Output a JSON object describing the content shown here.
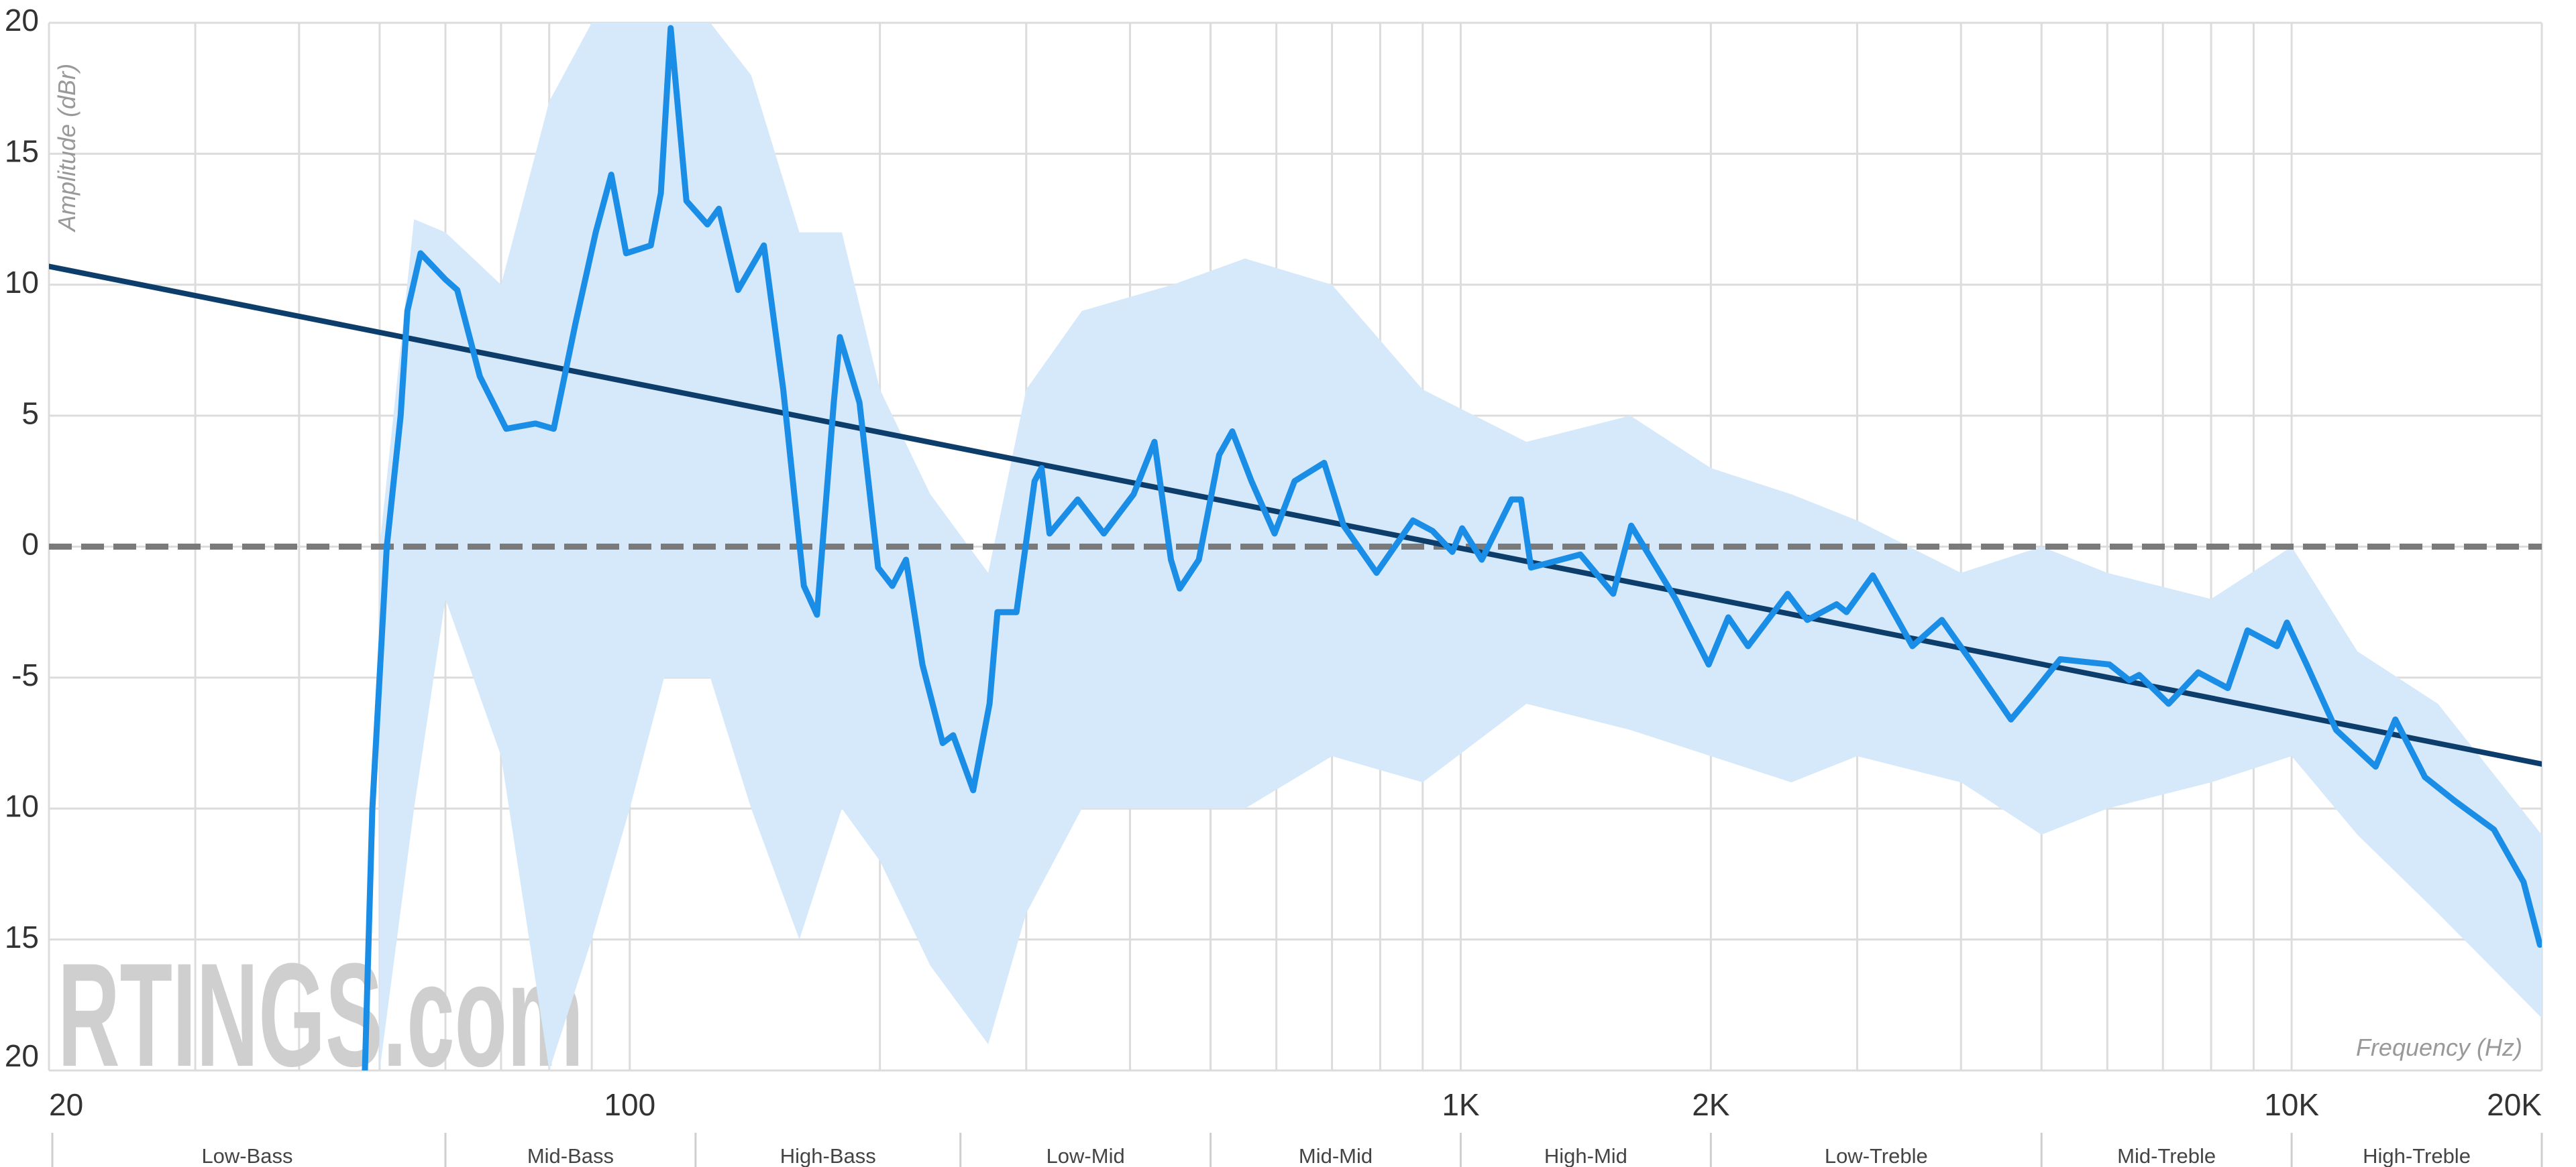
{
  "chart_data": {
    "type": "frequency-response",
    "y_label": "Amplitude (dBr)",
    "x_label": "Frequency (Hz)",
    "watermark": "RTINGS.com",
    "xscale": "log",
    "grid": true,
    "xlim": [
      20,
      20000
    ],
    "ylim": [
      -20,
      20
    ],
    "xticks": [
      20,
      100,
      {
        "value": 1000,
        "label": "1K"
      },
      {
        "value": 2000,
        "label": "2K"
      },
      {
        "value": 10000,
        "label": "10K"
      },
      {
        "value": 20000,
        "label": "20K"
      }
    ],
    "xgrid": [
      30,
      40,
      50,
      60,
      70,
      80,
      90,
      200,
      300,
      400,
      500,
      600,
      700,
      800,
      900,
      3000,
      4000,
      5000,
      6000,
      7000,
      8000,
      9000
    ],
    "yticks": [
      20,
      15,
      10,
      5,
      0,
      -5,
      {
        "value": -10,
        "label": "10"
      },
      {
        "value": -15,
        "label": "15"
      },
      {
        "value": -20,
        "label": "20"
      }
    ],
    "reference_line": {
      "value": 0,
      "color": "#7a7a7a"
    },
    "bands": {
      "names": [
        "Low-Bass",
        "Mid-Bass",
        "High-Bass",
        "Low-Mid",
        "Mid-Mid",
        "High-Mid",
        "Low-Treble",
        "Mid-Treble",
        "High-Treble"
      ],
      "edges": [
        20,
        60,
        120,
        250,
        500,
        1000,
        2000,
        5000,
        10000,
        20000
      ]
    },
    "range": {
      "color": "#d6e9fb",
      "x": [
        50,
        55,
        60,
        70,
        80,
        90,
        100,
        110,
        125,
        140,
        160,
        180,
        200,
        230,
        270,
        300,
        350,
        450,
        550,
        700,
        900,
        1200,
        1600,
        2000,
        2500,
        3000,
        4000,
        5000,
        6000,
        8000,
        10000,
        12000,
        15000,
        20000
      ],
      "low": [
        -20,
        -10,
        -2,
        -8,
        -20,
        -15,
        -10,
        -5,
        -5,
        -10,
        -15,
        -10,
        -12,
        -16,
        -19,
        -14,
        -10,
        -10,
        -10,
        -8,
        -9,
        -6,
        -7,
        -8,
        -9,
        -8,
        -9,
        -11,
        -10,
        -9,
        -8,
        -11,
        -14,
        -18
      ],
      "high": [
        0,
        12.5,
        12,
        10,
        17,
        20,
        20,
        20,
        20,
        18,
        12,
        12,
        6,
        2,
        -1,
        6,
        9,
        10,
        11,
        10,
        6,
        4,
        5,
        3,
        2,
        1,
        -1,
        0,
        -1,
        -2,
        0,
        -4,
        -6,
        -11
      ]
    },
    "series": [
      {
        "color": "#0d3d6b",
        "x": [
          20,
          20000
        ],
        "values": [
          10.7,
          -8.3
        ]
      },
      {
        "color": "#1a8ee6",
        "x": [
          48,
          49,
          51,
          53,
          54,
          56,
          60,
          62,
          66,
          71,
          77,
          81,
          86,
          91,
          95,
          99,
          106,
          109,
          112,
          117,
          124,
          128,
          135,
          142,
          145,
          153,
          162,
          168,
          176,
          179,
          189,
          199,
          207,
          215,
          225,
          238,
          245,
          259,
          271,
          277,
          292,
          307,
          313,
          320,
          346,
          372,
          404,
          428,
          448,
          459,
          484,
          512,
          531,
          560,
          597,
          631,
          685,
          723,
          792,
          876,
          925,
          977,
          1004,
          1060,
          1151,
          1182,
          1215,
          1393,
          1526,
          1604,
          1814,
          1988,
          2099,
          2217,
          2474,
          2613,
          2834,
          2913,
          3133,
          3496,
          3794,
          4118,
          4594,
          4852,
          5265,
          6037,
          6377,
          6554,
          7111,
          7718,
          8378,
          8849,
          9603,
          9870,
          10423,
          11313,
          12620,
          13329,
          14468,
          15704,
          17515,
          19012,
          19898
        ],
        "values": [
          -20,
          -10,
          0,
          5,
          9,
          11.2,
          10.2,
          9.8,
          6.5,
          4.5,
          4.7,
          4.5,
          8.5,
          12,
          14.2,
          11.2,
          11.5,
          13.5,
          19.8,
          13.2,
          12.3,
          12.9,
          9.8,
          11,
          11.5,
          6,
          -1.5,
          -2.6,
          5.5,
          8,
          5.5,
          -0.8,
          -1.5,
          -0.5,
          -4.5,
          -7.5,
          -7.2,
          -9.3,
          -6,
          -2.5,
          -2.5,
          2.5,
          3,
          0.5,
          1.8,
          0.5,
          2,
          4,
          -0.5,
          -1.6,
          -0.5,
          3.5,
          4.4,
          2.5,
          0.5,
          2.5,
          3.2,
          0.8,
          -1,
          1,
          0.6,
          -0.2,
          0.7,
          -0.5,
          1.8,
          1.8,
          -0.8,
          -0.3,
          -1.8,
          0.8,
          -2,
          -4.5,
          -2.7,
          -3.8,
          -1.8,
          -2.8,
          -2.2,
          -2.5,
          -1.1,
          -3.8,
          -2.8,
          -4.4,
          -6.6,
          -5.7,
          -4.3,
          -4.5,
          -5.1,
          -4.9,
          -6,
          -4.8,
          -5.4,
          -3.2,
          -3.8,
          -2.9,
          -4.5,
          -7,
          -8.4,
          -6.6,
          -8.8,
          -9.7,
          -10.8,
          -12.8,
          -15.2
        ]
      }
    ]
  }
}
